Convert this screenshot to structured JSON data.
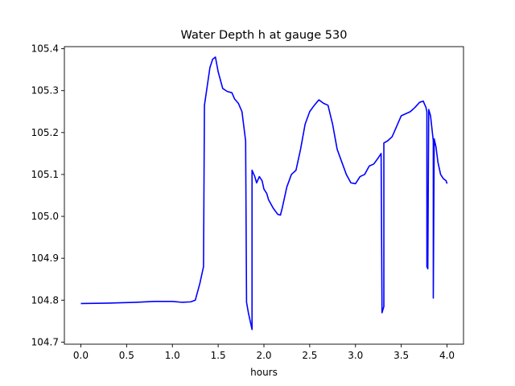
{
  "chart_data": {
    "type": "line",
    "title": "Water Depth h at gauge 530",
    "xlabel": "hours",
    "ylabel": "",
    "xlim": [
      -0.18,
      4.18
    ],
    "ylim": [
      104.695,
      105.405
    ],
    "xticks": [
      "0.0",
      "0.5",
      "1.0",
      "1.5",
      "2.0",
      "2.5",
      "3.0",
      "3.5",
      "4.0"
    ],
    "yticks": [
      "104.7",
      "104.8",
      "104.9",
      "105.0",
      "105.1",
      "105.2",
      "105.3",
      "105.4"
    ],
    "grid": false,
    "legend": "none",
    "series": [
      {
        "color": "#0000ff",
        "x": [
          0.0,
          0.3,
          0.6,
          0.8,
          1.0,
          1.1,
          1.2,
          1.25,
          1.3,
          1.34,
          1.35,
          1.38,
          1.41,
          1.44,
          1.47,
          1.5,
          1.55,
          1.6,
          1.65,
          1.68,
          1.72,
          1.76,
          1.8,
          1.81,
          1.81,
          1.83,
          1.86,
          1.87,
          1.87,
          1.89,
          1.9,
          1.92,
          1.95,
          1.98,
          2.0,
          2.03,
          2.05,
          2.1,
          2.15,
          2.18,
          2.2,
          2.25,
          2.3,
          2.35,
          2.4,
          2.45,
          2.5,
          2.55,
          2.6,
          2.65,
          2.7,
          2.75,
          2.8,
          2.85,
          2.9,
          2.95,
          3.0,
          3.05,
          3.1,
          3.15,
          3.2,
          3.25,
          3.28,
          3.29,
          3.29,
          3.31,
          3.31,
          3.35,
          3.4,
          3.45,
          3.5,
          3.55,
          3.6,
          3.65,
          3.7,
          3.74,
          3.77,
          3.78,
          3.78,
          3.79,
          3.8,
          3.82,
          3.84,
          3.85,
          3.85,
          3.86,
          3.88,
          3.9,
          3.93,
          3.96,
          3.99,
          4.0
        ],
        "y": [
          104.792,
          104.793,
          104.795,
          104.797,
          104.797,
          104.795,
          104.796,
          104.8,
          104.84,
          104.88,
          105.265,
          105.31,
          105.355,
          105.375,
          105.38,
          105.345,
          105.305,
          105.298,
          105.295,
          105.28,
          105.27,
          105.25,
          105.18,
          104.795,
          104.795,
          104.77,
          104.74,
          104.73,
          105.11,
          105.1,
          105.095,
          105.08,
          105.095,
          105.085,
          105.065,
          105.055,
          105.04,
          105.02,
          105.005,
          105.003,
          105.02,
          105.07,
          105.1,
          105.11,
          105.16,
          105.22,
          105.25,
          105.265,
          105.278,
          105.27,
          105.265,
          105.22,
          105.16,
          105.13,
          105.1,
          105.08,
          105.078,
          105.095,
          105.1,
          105.12,
          105.125,
          105.14,
          105.15,
          104.77,
          104.77,
          104.785,
          105.175,
          105.18,
          105.19,
          105.215,
          105.24,
          105.245,
          105.25,
          105.26,
          105.272,
          105.275,
          105.26,
          105.25,
          104.88,
          104.875,
          105.255,
          105.24,
          105.2,
          105.18,
          104.805,
          105.185,
          105.165,
          105.13,
          105.1,
          105.09,
          105.085,
          105.078
        ]
      }
    ]
  }
}
